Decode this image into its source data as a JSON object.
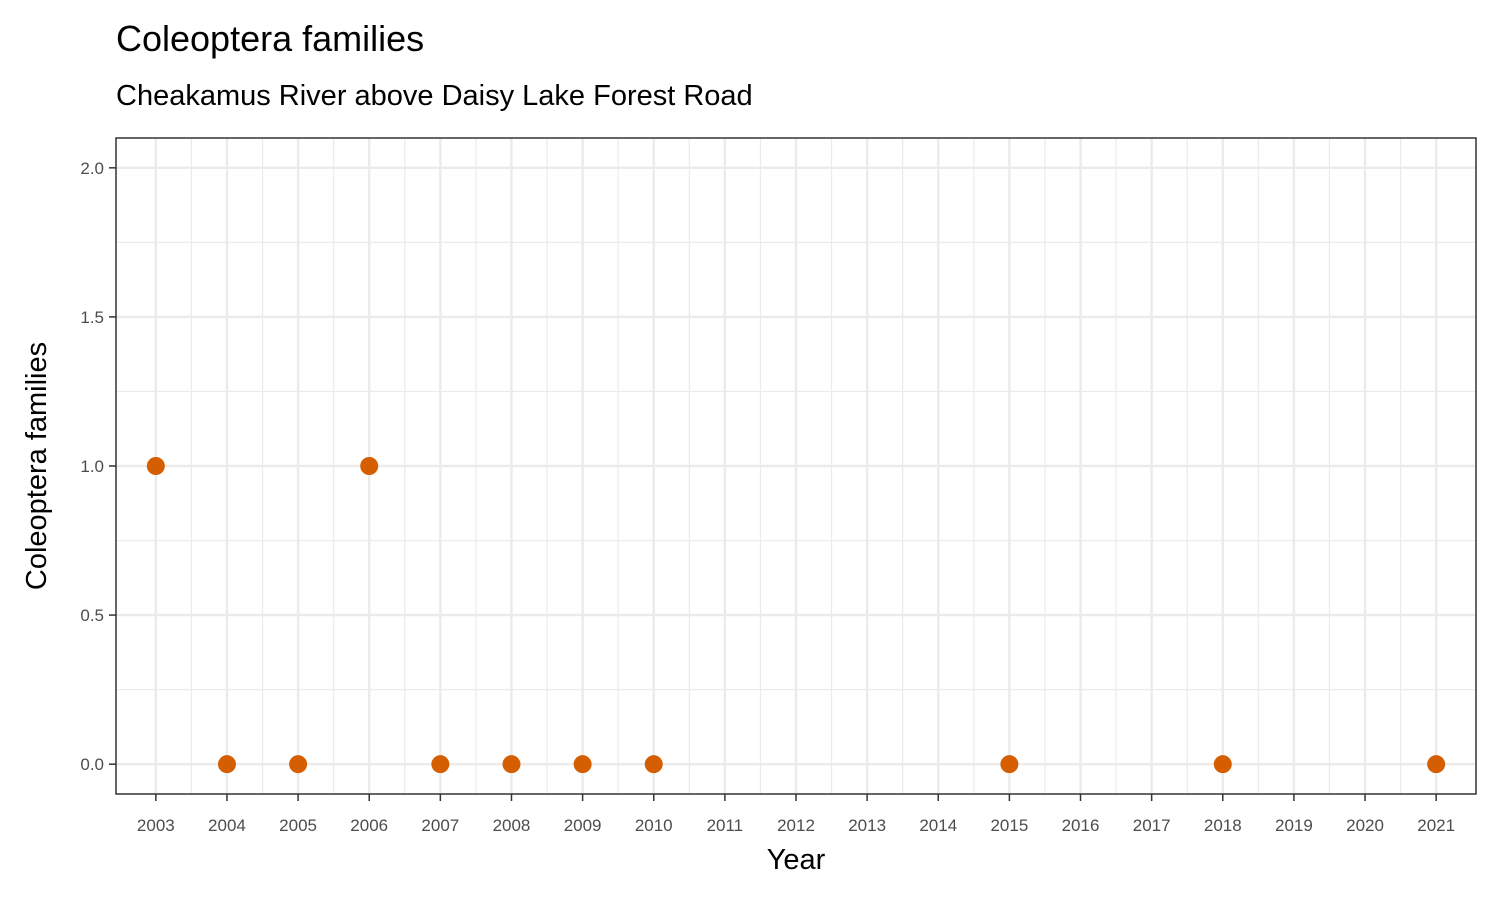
{
  "chart_data": {
    "type": "scatter",
    "title": "Coleoptera families",
    "subtitle": "Cheakamus River above Daisy Lake Forest Road",
    "xlabel": "Year",
    "ylabel": "Coleoptera families",
    "x_ticks": [
      "2003",
      "2004",
      "2005",
      "2006",
      "2007",
      "2008",
      "2009",
      "2010",
      "2011",
      "2012",
      "2013",
      "2014",
      "2015",
      "2016",
      "2017",
      "2018",
      "2019",
      "2020",
      "2021"
    ],
    "y_ticks": [
      "0.0",
      "0.5",
      "1.0",
      "1.5",
      "2.0"
    ],
    "xlim": [
      2002.44,
      2021.56
    ],
    "ylim": [
      -0.1,
      2.1
    ],
    "grid": true,
    "point_color": "#d55e00",
    "series": [
      {
        "x": [
          2003,
          2004,
          2005,
          2006,
          2007,
          2008,
          2009,
          2010,
          2015,
          2018,
          2021
        ],
        "y": [
          1,
          0,
          0,
          1,
          0,
          0,
          0,
          0,
          0,
          0,
          0
        ]
      }
    ]
  }
}
